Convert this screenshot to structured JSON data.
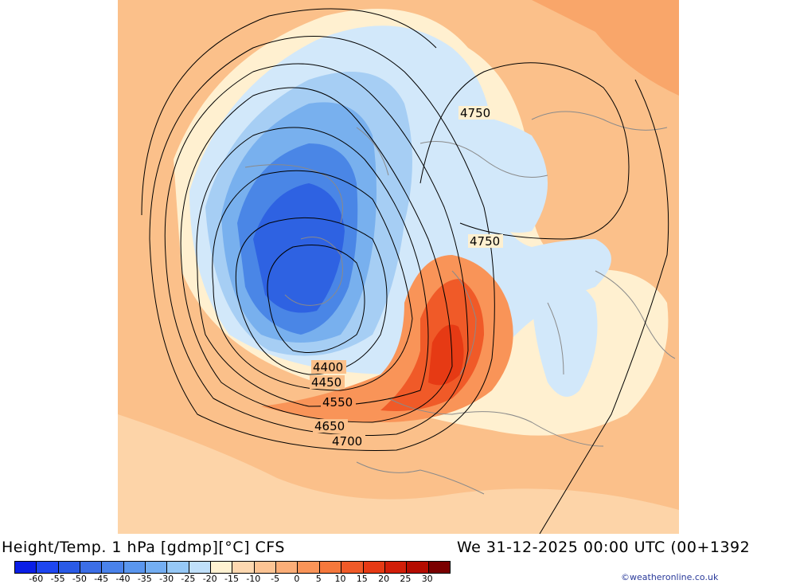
{
  "title_left": "Height/Temp. 1 hPa [gdmp][°C] CFS",
  "title_right": "We 31-12-2025 00:00 UTC (00+1392",
  "credit": "©weatheronline.co.uk",
  "contour_labels": [
    "4750",
    "4750",
    "4400",
    "4450",
    "4550",
    "4650",
    "4700"
  ],
  "legend": {
    "labels": [
      "-60",
      "-55",
      "-50",
      "-45",
      "-40",
      "-35",
      "-30",
      "-25",
      "-20",
      "-15",
      "-10",
      "-5",
      "0",
      "5",
      "10",
      "15",
      "20",
      "25",
      "30"
    ],
    "colors": [
      "#0a1ee6",
      "#1e46f0",
      "#2a5ae6",
      "#3c6ee6",
      "#4a82ea",
      "#5a96ee",
      "#74aef2",
      "#96c8f6",
      "#c0e0fa",
      "#fff2d2",
      "#fdd8b0",
      "#fcc494",
      "#fbae78",
      "#f99458",
      "#f5783c",
      "#f05a28",
      "#e63a14",
      "#d21e08",
      "#b40c00",
      "#7a0000"
    ]
  },
  "colors": {
    "sea_base": "#fbc08a",
    "warm_core": "#e63a14"
  }
}
